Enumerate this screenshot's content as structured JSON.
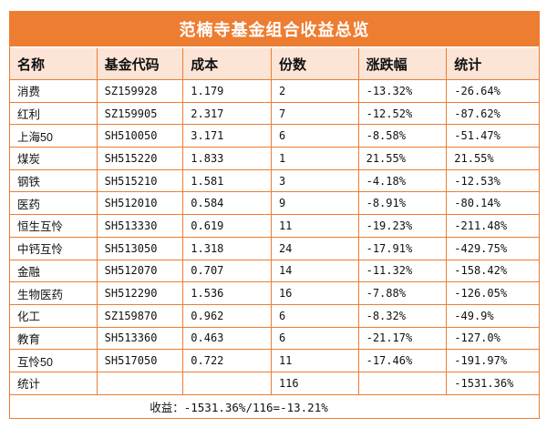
{
  "title": "范楠寺基金组合收益总览",
  "colors": {
    "accent_orange": "#ED7D31",
    "header_bg": "#FCE4D6",
    "row_bg": "#FFFFFF",
    "title_text": "#FFFFFF",
    "body_text": "#111111"
  },
  "table": {
    "headers": [
      "名称",
      "基金代码",
      "成本",
      "份数",
      "涨跌幅",
      "统计"
    ],
    "rows": [
      [
        "消费",
        "SZ159928",
        "1.179",
        "2",
        "-13.32%",
        "-26.64%"
      ],
      [
        "红利",
        "SZ159905",
        "2.317",
        "7",
        "-12.52%",
        "-87.62%"
      ],
      [
        "上海50",
        "SH510050",
        "3.171",
        "6",
        "-8.58%",
        "-51.47%"
      ],
      [
        "煤炭",
        "SH515220",
        "1.833",
        "1",
        "21.55%",
        "21.55%"
      ],
      [
        "钢铁",
        "SH515210",
        "1.581",
        "3",
        "-4.18%",
        "-12.53%"
      ],
      [
        "医药",
        "SH512010",
        "0.584",
        "9",
        "-8.91%",
        "-80.14%"
      ],
      [
        "恒生互怜",
        "SH513330",
        "0.619",
        "11",
        "-19.23%",
        "-211.48%"
      ],
      [
        "中钙互怜",
        "SH513050",
        "1.318",
        "24",
        "-17.91%",
        "-429.75%"
      ],
      [
        "金融",
        "SH512070",
        "0.707",
        "14",
        "-11.32%",
        "-158.42%"
      ],
      [
        "生物医药",
        "SH512290",
        "1.536",
        "16",
        "-7.88%",
        "-126.05%"
      ],
      [
        "化工",
        "SZ159870",
        "0.962",
        "6",
        "-8.32%",
        "-49.9%"
      ],
      [
        "教育",
        "SH513360",
        "0.463",
        "6",
        "-21.17%",
        "-127.0%"
      ],
      [
        "互怜50",
        "SH517050",
        "0.722",
        "11",
        "-17.46%",
        "-191.97%"
      ]
    ],
    "totals_row": [
      "统计",
      "",
      "",
      "116",
      "",
      "-1531.36%"
    ],
    "summary": "收益：-1531.36%/116=-13.21%"
  }
}
